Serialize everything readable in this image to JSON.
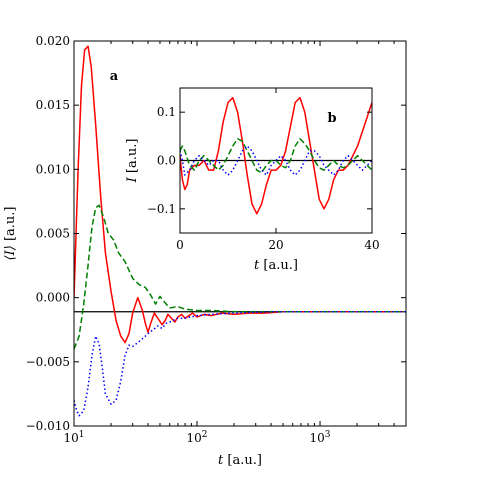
{
  "chart_data": [
    {
      "panel": "a",
      "type": "line",
      "xscale": "log",
      "xlim": [
        10,
        5000
      ],
      "ylim": [
        -0.01,
        0.02
      ],
      "xlabel": "t [a.u.]",
      "ylabel": "⟨I⟩ [a.u.]",
      "x_ticks": [
        10,
        100,
        1000
      ],
      "x_tick_labels": [
        "10^1",
        "10^2",
        "10^3"
      ],
      "y_ticks": [
        -0.01,
        -0.005,
        0.0,
        0.005,
        0.01,
        0.015,
        0.02
      ],
      "y_tick_labels": [
        "−0.010",
        "−0.005",
        "0.000",
        "0.005",
        "0.010",
        "0.015",
        "0.020"
      ],
      "hline": -0.0011,
      "series": [
        {
          "style": "solid",
          "color": "#ff0000",
          "x": [
            10,
            10.8,
            11.5,
            12.2,
            13,
            13.8,
            15,
            16.5,
            18,
            20,
            22,
            24,
            26,
            28,
            30,
            33,
            36,
            38,
            40,
            42,
            45,
            48,
            52,
            55,
            58,
            62,
            66,
            70,
            75,
            80,
            86,
            92,
            100,
            115,
            130,
            160,
            200,
            260,
            350,
            500,
            800,
            1500,
            5000
          ],
          "y": [
            0.0,
            0.01,
            0.0165,
            0.0193,
            0.0196,
            0.018,
            0.0135,
            0.0078,
            0.0035,
            0.0005,
            -0.0018,
            -0.003,
            -0.0035,
            -0.0028,
            -0.0012,
            0.0,
            -0.001,
            -0.002,
            -0.0027,
            -0.002,
            -0.0012,
            -0.0016,
            -0.0021,
            -0.0018,
            -0.0013,
            -0.0016,
            -0.0019,
            -0.0015,
            -0.0013,
            -0.0016,
            -0.0014,
            -0.0012,
            -0.0015,
            -0.0013,
            -0.0014,
            -0.0012,
            -0.0013,
            -0.0012,
            -0.0012,
            -0.0011,
            -0.0011,
            -0.0011,
            -0.0011
          ]
        },
        {
          "style": "dashed",
          "color": "#008000",
          "x": [
            10,
            11,
            12,
            13,
            14,
            15,
            16,
            17.5,
            19,
            21,
            23,
            26,
            30,
            34,
            38,
            42,
            46,
            50,
            55,
            60,
            70,
            80,
            100,
            130,
            200,
            400,
            1000,
            5000
          ],
          "y": [
            -0.004,
            -0.003,
            -0.0005,
            0.0025,
            0.0055,
            0.007,
            0.0072,
            0.0062,
            0.005,
            0.0045,
            0.0035,
            0.0028,
            0.0015,
            0.001,
            0.0008,
            0.0002,
            -0.0005,
            0.0001,
            -0.0004,
            -0.0008,
            -0.0007,
            -0.0009,
            -0.001,
            -0.001,
            -0.0011,
            -0.0011,
            -0.0011,
            -0.0011
          ]
        },
        {
          "style": "dotted",
          "color": "#0000ff",
          "x": [
            10,
            10.5,
            11,
            12,
            13,
            14,
            15,
            16,
            17,
            18,
            20,
            22,
            24,
            26,
            28,
            30,
            33,
            36,
            38,
            40,
            44,
            48,
            52,
            56,
            60,
            70,
            80,
            100,
            130,
            200,
            400,
            1000,
            5000
          ],
          "y": [
            -0.008,
            -0.0088,
            -0.0092,
            -0.0088,
            -0.007,
            -0.0045,
            -0.003,
            -0.0036,
            -0.0055,
            -0.0075,
            -0.0083,
            -0.008,
            -0.0065,
            -0.0045,
            -0.0037,
            -0.0038,
            -0.0035,
            -0.0032,
            -0.003,
            -0.0028,
            -0.0025,
            -0.0022,
            -0.0024,
            -0.002,
            -0.0019,
            -0.0016,
            -0.0016,
            -0.0014,
            -0.0013,
            -0.0012,
            -0.0011,
            -0.0011,
            -0.0011
          ]
        }
      ]
    },
    {
      "panel": "b",
      "type": "line",
      "xlim": [
        0,
        40
      ],
      "ylim": [
        -0.15,
        0.15
      ],
      "xlabel": "t [a.u.]",
      "ylabel": "I [a.u.]",
      "x_ticks": [
        0,
        20,
        40
      ],
      "x_tick_labels": [
        "0",
        "20",
        "40"
      ],
      "y_ticks": [
        -0.1,
        0.0,
        0.1
      ],
      "y_tick_labels": [
        "−0.1",
        "0.0",
        "0.1"
      ],
      "hline": 0.0,
      "series": [
        {
          "style": "solid",
          "color": "#ff0000",
          "x": [
            0,
            0.5,
            1,
            1.5,
            2,
            3,
            4,
            5,
            6,
            7,
            8,
            9,
            10,
            11,
            12,
            13,
            14,
            15,
            16,
            17,
            18,
            19,
            20,
            21,
            22,
            23,
            24,
            25,
            26,
            27,
            28,
            29,
            30,
            31,
            32,
            33,
            34,
            35,
            36,
            37,
            38,
            39,
            40
          ],
          "y": [
            0.01,
            -0.04,
            -0.06,
            -0.05,
            -0.02,
            -0.01,
            -0.01,
            0.0,
            -0.02,
            -0.02,
            0.02,
            0.08,
            0.12,
            0.13,
            0.1,
            0.04,
            -0.03,
            -0.09,
            -0.11,
            -0.09,
            -0.05,
            -0.02,
            -0.02,
            -0.01,
            0.02,
            0.07,
            0.12,
            0.13,
            0.1,
            0.04,
            -0.02,
            -0.08,
            -0.1,
            -0.08,
            -0.04,
            -0.02,
            -0.02,
            -0.01,
            0.01,
            0.03,
            0.06,
            0.09,
            0.12
          ]
        },
        {
          "style": "dashed",
          "color": "#008000",
          "x": [
            0,
            0.5,
            1,
            2,
            3,
            4,
            5,
            6,
            7,
            8,
            9,
            10,
            11,
            12,
            13,
            14,
            15,
            16,
            17,
            18,
            19,
            20,
            21,
            22,
            23,
            24,
            25,
            26,
            27,
            28,
            29,
            30,
            31,
            32,
            33,
            34,
            35,
            36,
            37,
            38,
            39,
            40
          ],
          "y": [
            0.02,
            0.03,
            0.02,
            -0.01,
            -0.02,
            0.0,
            0.01,
            0.0,
            -0.01,
            -0.02,
            -0.01,
            0.01,
            0.03,
            0.045,
            0.04,
            0.02,
            0.0,
            -0.02,
            -0.025,
            -0.01,
            0.0,
            0.0,
            -0.01,
            -0.015,
            0.0,
            0.03,
            0.045,
            0.035,
            0.02,
            0.0,
            -0.015,
            -0.02,
            -0.01,
            0.0,
            -0.01,
            -0.015,
            -0.01,
            0.0,
            0.01,
            0.0,
            -0.01,
            -0.02
          ]
        },
        {
          "style": "dotted",
          "color": "#0000ff",
          "x": [
            0,
            0.5,
            1,
            2,
            3,
            4,
            5,
            6,
            7,
            8,
            9,
            10,
            11,
            12,
            13,
            14,
            15,
            16,
            17,
            18,
            19,
            20,
            21,
            22,
            23,
            24,
            25,
            26,
            27,
            28,
            29,
            30,
            31,
            32,
            33,
            34,
            35,
            36,
            37,
            38,
            39,
            40
          ],
          "y": [
            0.02,
            0.0,
            -0.03,
            -0.02,
            0.0,
            0.01,
            0.0,
            -0.01,
            0.0,
            0.0,
            -0.02,
            -0.03,
            -0.02,
            0.0,
            0.02,
            0.03,
            0.02,
            0.0,
            -0.02,
            -0.03,
            -0.01,
            0.0,
            0.01,
            0.0,
            -0.02,
            -0.03,
            -0.02,
            0.0,
            0.02,
            0.02,
            0.01,
            -0.01,
            -0.02,
            -0.03,
            -0.02,
            0.0,
            0.01,
            0.0,
            -0.01,
            -0.02,
            -0.01,
            0.0
          ]
        }
      ]
    }
  ]
}
